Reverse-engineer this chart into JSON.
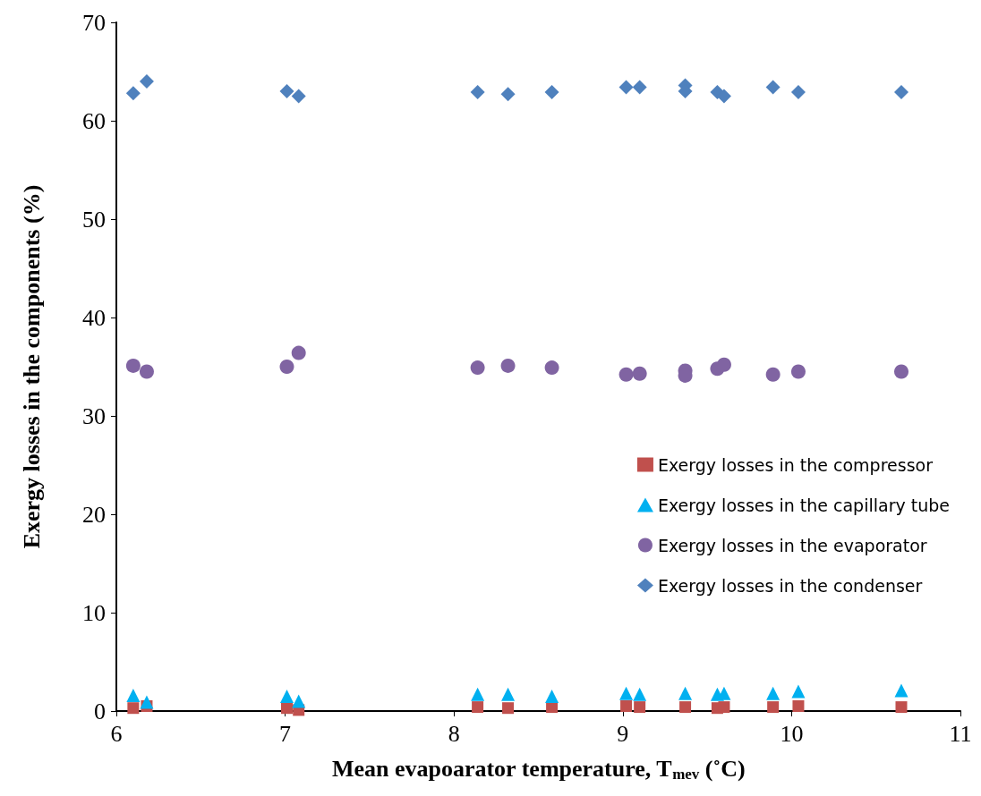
{
  "chart_data": {
    "type": "scatter",
    "xlabel": "Mean evapoarator temperature, T$_{mev}$ (˚C)",
    "ylabel": "Exergy losses in the components (%)",
    "x": [
      6.1,
      6.18,
      7.01,
      7.08,
      8.14,
      8.32,
      8.58,
      9.02,
      9.1,
      9.37,
      9.37,
      9.56,
      9.6,
      9.89,
      10.04,
      10.65
    ],
    "xlim": [
      6,
      11
    ],
    "xticks": [
      6,
      7,
      8,
      9,
      10,
      11
    ],
    "ylim": [
      0,
      70
    ],
    "yticks": [
      0,
      10,
      20,
      30,
      40,
      50,
      60,
      70
    ],
    "grid": false,
    "legend": "right",
    "series": [
      {
        "name": "Exergy losses in the compressor",
        "color": "#c0504d",
        "marker": "square",
        "values": [
          0.3,
          0.5,
          0.3,
          0.1,
          0.4,
          0.3,
          0.4,
          0.5,
          0.4,
          0.4,
          null,
          0.3,
          0.4,
          0.4,
          0.5,
          0.4
        ]
      },
      {
        "name": "Exergy losses in the capillary tube",
        "color": "#00b0f0",
        "marker": "triangle",
        "values": [
          1.6,
          0.9,
          1.5,
          1.0,
          1.7,
          1.7,
          1.5,
          1.8,
          1.7,
          1.8,
          null,
          1.7,
          1.8,
          1.8,
          2.0,
          2.1
        ]
      },
      {
        "name": "Exergy losses in the evaporator",
        "color": "#8064a2",
        "marker": "circle",
        "values": [
          35.1,
          34.5,
          35.0,
          36.4,
          34.9,
          35.1,
          34.9,
          34.2,
          34.3,
          34.6,
          34.1,
          34.8,
          35.2,
          34.2,
          34.5,
          34.5
        ]
      },
      {
        "name": "Exergy losses in the condenser",
        "color": "#4f81bd",
        "marker": "diamond",
        "values": [
          62.8,
          64.0,
          63.0,
          62.5,
          62.9,
          62.7,
          62.9,
          63.4,
          63.4,
          63.6,
          63.0,
          62.9,
          62.5,
          63.4,
          62.9,
          62.9
        ]
      }
    ]
  }
}
